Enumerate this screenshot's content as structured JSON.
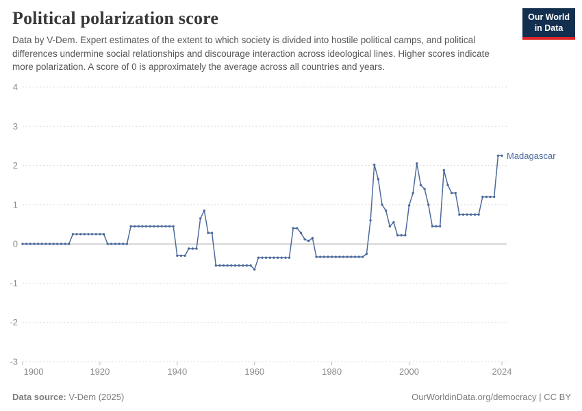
{
  "header": {
    "title": "Political polarization score",
    "subtitle": "Data by V-Dem. Expert estimates of the extent to which society is divided into hostile political camps, and political differences undermine social relationships and discourage interaction across ideological lines. Higher scores indicate more polarization. A score of 0 is approximately the average across all countries and years."
  },
  "logo": {
    "line1": "Our World",
    "line2": "in Data",
    "bg_color": "#132f4f",
    "accent_color": "#dc2626"
  },
  "chart_data": {
    "type": "line",
    "title": "Political polarization score",
    "entity": "Madagascar",
    "year_start": 1900,
    "year_end": 2024,
    "ylim": [
      -3,
      4
    ],
    "yticks": [
      4,
      3,
      2,
      1,
      0,
      -1,
      -2,
      -3
    ],
    "xticks": [
      1900,
      1920,
      1940,
      1960,
      1980,
      2000,
      2024
    ],
    "grid": true,
    "legend_position": "right-of-line",
    "line_color": "#4c6a9c",
    "axis_color": "#8b8b8b",
    "grid_color": "#dcdcdc",
    "zero_line_color": "#a8a8a8",
    "tick_color": "#b8b8b8",
    "values": [
      0,
      0,
      0,
      0,
      0,
      0,
      0,
      0,
      0,
      0,
      0,
      0,
      0,
      0.25,
      0.25,
      0.25,
      0.25,
      0.25,
      0.25,
      0.25,
      0.25,
      0.25,
      0,
      0,
      0,
      0,
      0,
      0,
      0.45,
      0.45,
      0.45,
      0.45,
      0.45,
      0.45,
      0.45,
      0.45,
      0.45,
      0.45,
      0.45,
      0.45,
      -0.3,
      -0.3,
      -0.3,
      -0.12,
      -0.12,
      -0.12,
      0.65,
      0.85,
      0.28,
      0.28,
      -0.55,
      -0.55,
      -0.55,
      -0.55,
      -0.55,
      -0.55,
      -0.55,
      -0.55,
      -0.55,
      -0.55,
      -0.65,
      -0.35,
      -0.35,
      -0.35,
      -0.35,
      -0.35,
      -0.35,
      -0.35,
      -0.35,
      -0.35,
      0.4,
      0.4,
      0.28,
      0.12,
      0.08,
      0.15,
      -0.33,
      -0.33,
      -0.33,
      -0.33,
      -0.33,
      -0.33,
      -0.33,
      -0.33,
      -0.33,
      -0.33,
      -0.33,
      -0.33,
      -0.33,
      -0.25,
      0.6,
      2.02,
      1.65,
      1.0,
      0.85,
      0.45,
      0.55,
      0.22,
      0.22,
      0.22,
      0.98,
      1.3,
      2.05,
      1.5,
      1.4,
      1.0,
      0.45,
      0.45,
      0.45,
      1.88,
      1.5,
      1.3,
      1.3,
      0.75,
      0.75,
      0.75,
      0.75,
      0.75,
      0.75,
      1.2,
      1.2,
      1.2,
      1.2,
      2.25,
      2.25
    ]
  },
  "footer": {
    "source_label": "Data source:",
    "source_value": " V-Dem (2025)",
    "credit": "OurWorldinData.org/democracy | CC BY"
  }
}
